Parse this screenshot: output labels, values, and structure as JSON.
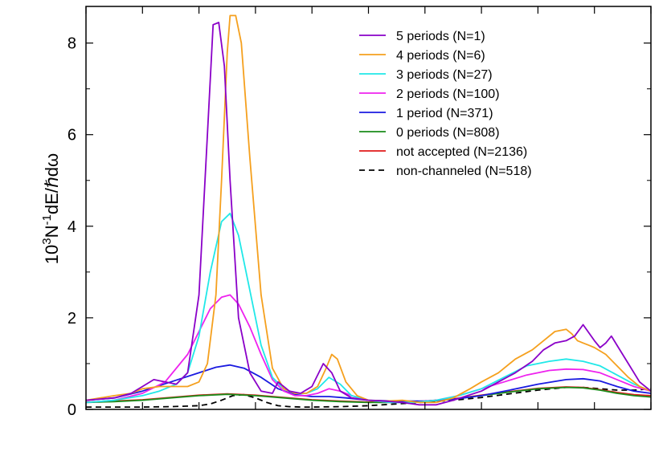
{
  "chart_data": {
    "type": "line",
    "xlabel": "",
    "ylabel": "10³N⁻¹dE/ℏdω",
    "ylabel_parts": {
      "pre": "10",
      "sup1": "3",
      "mid": "N",
      "sup2": "-1",
      "post": "dE/ℏdω"
    },
    "xlim": [
      0,
      10
    ],
    "ylim": [
      0,
      8.8
    ],
    "yticks": [
      0,
      2,
      4,
      6,
      8
    ],
    "xtick_count": 11,
    "legend_position": "top-right",
    "grid": false,
    "series": [
      {
        "name": "5 periods (N=1)",
        "color": "#8a00c8",
        "dash": "solid",
        "x": [
          0,
          0.5,
          0.8,
          1.0,
          1.2,
          1.4,
          1.6,
          1.8,
          2.0,
          2.15,
          2.25,
          2.35,
          2.45,
          2.55,
          2.7,
          2.9,
          3.1,
          3.3,
          3.4,
          3.6,
          3.8,
          4.0,
          4.2,
          4.35,
          4.5,
          4.7,
          5.0,
          5.3,
          5.6,
          5.9,
          6.2,
          6.5,
          7.0,
          7.3,
          7.6,
          7.9,
          8.1,
          8.3,
          8.5,
          8.65,
          8.8,
          9.0,
          9.1,
          9.2,
          9.3,
          9.4,
          9.6,
          9.8,
          10.0
        ],
        "y": [
          0.2,
          0.25,
          0.35,
          0.5,
          0.65,
          0.6,
          0.55,
          0.8,
          2.5,
          6.0,
          8.4,
          8.45,
          7.5,
          5.0,
          2.0,
          0.8,
          0.4,
          0.35,
          0.6,
          0.4,
          0.35,
          0.5,
          1.0,
          0.8,
          0.4,
          0.25,
          0.2,
          0.18,
          0.15,
          0.1,
          0.1,
          0.2,
          0.4,
          0.6,
          0.8,
          1.05,
          1.3,
          1.45,
          1.5,
          1.6,
          1.85,
          1.5,
          1.35,
          1.45,
          1.6,
          1.4,
          1.0,
          0.6,
          0.4
        ]
      },
      {
        "name": "4 periods (N=6)",
        "color": "#f5a01e",
        "dash": "solid",
        "x": [
          0,
          0.5,
          0.8,
          1.0,
          1.3,
          1.6,
          1.8,
          2.0,
          2.15,
          2.3,
          2.4,
          2.5,
          2.55,
          2.65,
          2.75,
          2.9,
          3.1,
          3.3,
          3.5,
          3.7,
          3.9,
          4.1,
          4.25,
          4.35,
          4.45,
          4.6,
          4.8,
          5.0,
          5.3,
          5.6,
          5.9,
          6.2,
          6.5,
          6.8,
          7.0,
          7.3,
          7.6,
          7.9,
          8.1,
          8.3,
          8.5,
          8.6,
          8.7,
          8.8,
          8.9,
          9.0,
          9.2,
          9.4,
          9.6,
          9.8,
          10.0
        ],
        "y": [
          0.2,
          0.3,
          0.35,
          0.45,
          0.5,
          0.5,
          0.5,
          0.6,
          1.0,
          2.5,
          5.0,
          7.8,
          8.6,
          8.6,
          8.0,
          5.5,
          2.5,
          0.9,
          0.45,
          0.35,
          0.35,
          0.5,
          0.9,
          1.2,
          1.1,
          0.6,
          0.3,
          0.2,
          0.18,
          0.2,
          0.15,
          0.15,
          0.25,
          0.45,
          0.6,
          0.8,
          1.1,
          1.3,
          1.5,
          1.7,
          1.75,
          1.65,
          1.5,
          1.45,
          1.4,
          1.35,
          1.2,
          0.95,
          0.7,
          0.5,
          0.4
        ]
      },
      {
        "name": "3 periods (N=27)",
        "color": "#20e8e8",
        "dash": "solid",
        "x": [
          0,
          0.5,
          1.0,
          1.3,
          1.6,
          1.8,
          2.0,
          2.2,
          2.4,
          2.55,
          2.7,
          2.9,
          3.1,
          3.3,
          3.5,
          3.7,
          3.9,
          4.1,
          4.3,
          4.5,
          4.7,
          5.0,
          5.4,
          5.8,
          6.2,
          6.6,
          7.0,
          7.4,
          7.8,
          8.2,
          8.5,
          8.8,
          9.1,
          9.4,
          9.7,
          10.0
        ],
        "y": [
          0.15,
          0.2,
          0.3,
          0.4,
          0.55,
          0.8,
          1.6,
          3.0,
          4.1,
          4.28,
          3.8,
          2.6,
          1.4,
          0.7,
          0.45,
          0.35,
          0.35,
          0.45,
          0.7,
          0.55,
          0.3,
          0.2,
          0.15,
          0.15,
          0.2,
          0.3,
          0.45,
          0.7,
          0.95,
          1.05,
          1.1,
          1.05,
          0.95,
          0.75,
          0.55,
          0.4
        ]
      },
      {
        "name": "2 periods  (N=100)",
        "color": "#ee22ee",
        "dash": "solid",
        "x": [
          0,
          0.5,
          1.0,
          1.4,
          1.8,
          2.0,
          2.2,
          2.4,
          2.55,
          2.7,
          2.9,
          3.1,
          3.3,
          3.5,
          3.7,
          3.9,
          4.1,
          4.3,
          4.5,
          4.7,
          5.0,
          5.4,
          5.8,
          6.2,
          6.6,
          7.0,
          7.4,
          7.8,
          8.2,
          8.5,
          8.8,
          9.1,
          9.4,
          9.7,
          10.0
        ],
        "y": [
          0.15,
          0.2,
          0.35,
          0.6,
          1.2,
          1.7,
          2.2,
          2.45,
          2.5,
          2.3,
          1.8,
          1.2,
          0.65,
          0.4,
          0.3,
          0.3,
          0.35,
          0.45,
          0.4,
          0.3,
          0.2,
          0.15,
          0.15,
          0.2,
          0.3,
          0.45,
          0.6,
          0.75,
          0.85,
          0.88,
          0.87,
          0.8,
          0.65,
          0.5,
          0.4
        ]
      },
      {
        "name": "1 period (N=371)",
        "color": "#1a1ae0",
        "dash": "solid",
        "x": [
          0,
          0.5,
          1.0,
          1.5,
          2.0,
          2.3,
          2.55,
          2.8,
          3.1,
          3.4,
          3.7,
          4.0,
          4.3,
          4.6,
          5.0,
          5.5,
          6.0,
          6.5,
          7.0,
          7.5,
          8.0,
          8.5,
          8.8,
          9.1,
          9.4,
          9.7,
          10.0
        ],
        "y": [
          0.2,
          0.25,
          0.4,
          0.6,
          0.8,
          0.92,
          0.97,
          0.9,
          0.7,
          0.45,
          0.32,
          0.28,
          0.28,
          0.25,
          0.2,
          0.18,
          0.18,
          0.22,
          0.3,
          0.42,
          0.55,
          0.65,
          0.67,
          0.62,
          0.5,
          0.4,
          0.35
        ]
      },
      {
        "name": "0 periods  (N=808)",
        "color": "#1a8c1a",
        "dash": "solid",
        "x": [
          0,
          0.5,
          1.0,
          1.5,
          2.0,
          2.5,
          3.0,
          3.5,
          4.0,
          4.5,
          5.0,
          5.5,
          6.0,
          6.5,
          7.0,
          7.5,
          8.0,
          8.5,
          8.8,
          9.1,
          9.4,
          9.7,
          10.0
        ],
        "y": [
          0.15,
          0.17,
          0.2,
          0.25,
          0.3,
          0.33,
          0.3,
          0.25,
          0.2,
          0.17,
          0.15,
          0.15,
          0.17,
          0.22,
          0.3,
          0.38,
          0.45,
          0.48,
          0.47,
          0.42,
          0.35,
          0.3,
          0.27
        ]
      },
      {
        "name": "not accepted  (N=2136)",
        "color": "#e01a1a",
        "dash": "solid",
        "x": [
          0,
          0.5,
          1.0,
          1.5,
          2.0,
          2.5,
          3.0,
          3.5,
          4.0,
          4.5,
          5.0,
          5.5,
          6.0,
          6.5,
          7.0,
          7.5,
          8.0,
          8.5,
          8.8,
          9.1,
          9.4,
          9.7,
          10.0
        ],
        "y": [
          0.16,
          0.18,
          0.21,
          0.26,
          0.31,
          0.34,
          0.31,
          0.26,
          0.21,
          0.18,
          0.16,
          0.16,
          0.18,
          0.23,
          0.31,
          0.39,
          0.46,
          0.49,
          0.48,
          0.43,
          0.37,
          0.32,
          0.3
        ]
      },
      {
        "name": "non-channeled (N=518)",
        "color": "#000000",
        "dash": "dashed",
        "x": [
          0,
          0.5,
          1.0,
          1.5,
          2.0,
          2.2,
          2.4,
          2.6,
          2.8,
          3.0,
          3.2,
          3.4,
          3.6,
          3.8,
          4.0,
          4.5,
          5.0,
          5.5,
          6.0,
          6.5,
          7.0,
          7.5,
          8.0,
          8.5,
          8.8,
          9.1,
          9.4,
          9.7,
          10.0
        ],
        "y": [
          0.05,
          0.05,
          0.05,
          0.06,
          0.08,
          0.12,
          0.2,
          0.3,
          0.32,
          0.25,
          0.15,
          0.08,
          0.06,
          0.05,
          0.05,
          0.06,
          0.08,
          0.12,
          0.16,
          0.2,
          0.26,
          0.34,
          0.42,
          0.48,
          0.48,
          0.45,
          0.42,
          0.42,
          0.45
        ]
      }
    ]
  }
}
